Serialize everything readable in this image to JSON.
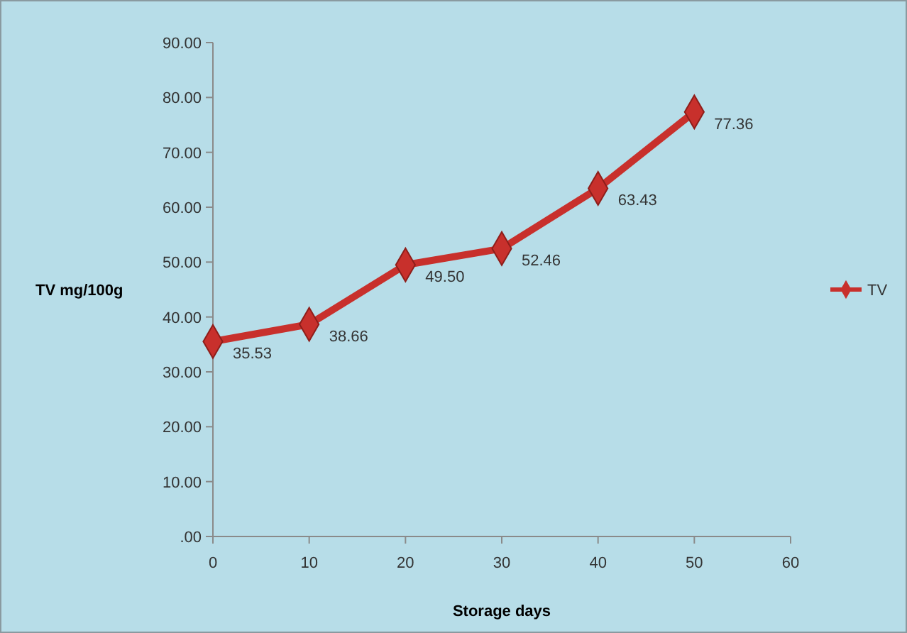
{
  "chart_data": {
    "type": "line",
    "xlabel": "Storage days",
    "ylabel": "TV mg/100g",
    "x": [
      0,
      10,
      20,
      30,
      40,
      50
    ],
    "series": [
      {
        "name": "TV",
        "color": "#c8302c",
        "values": [
          35.53,
          38.66,
          49.5,
          52.46,
          63.43,
          77.36
        ],
        "value_labels": [
          "35.53",
          "38.66",
          "49.50",
          "52.46",
          "63.43",
          "77.36"
        ]
      }
    ],
    "xlim": [
      0,
      60
    ],
    "xticks": [
      0,
      10,
      20,
      30,
      40,
      50,
      60
    ],
    "ylim": [
      0,
      90
    ],
    "yticks": [
      {
        "value": 0,
        "label": ".00"
      },
      {
        "value": 10,
        "label": "10.00"
      },
      {
        "value": 20,
        "label": "20.00"
      },
      {
        "value": 30,
        "label": "30.00"
      },
      {
        "value": 40,
        "label": "40.00"
      },
      {
        "value": 50,
        "label": "50.00"
      },
      {
        "value": 60,
        "label": "60.00"
      },
      {
        "value": 70,
        "label": "70.00"
      },
      {
        "value": 80,
        "label": "80.00"
      },
      {
        "value": 90,
        "label": "90.00"
      }
    ],
    "legend": "right",
    "marker": "diamond",
    "line_style": "solid",
    "grid": false
  }
}
